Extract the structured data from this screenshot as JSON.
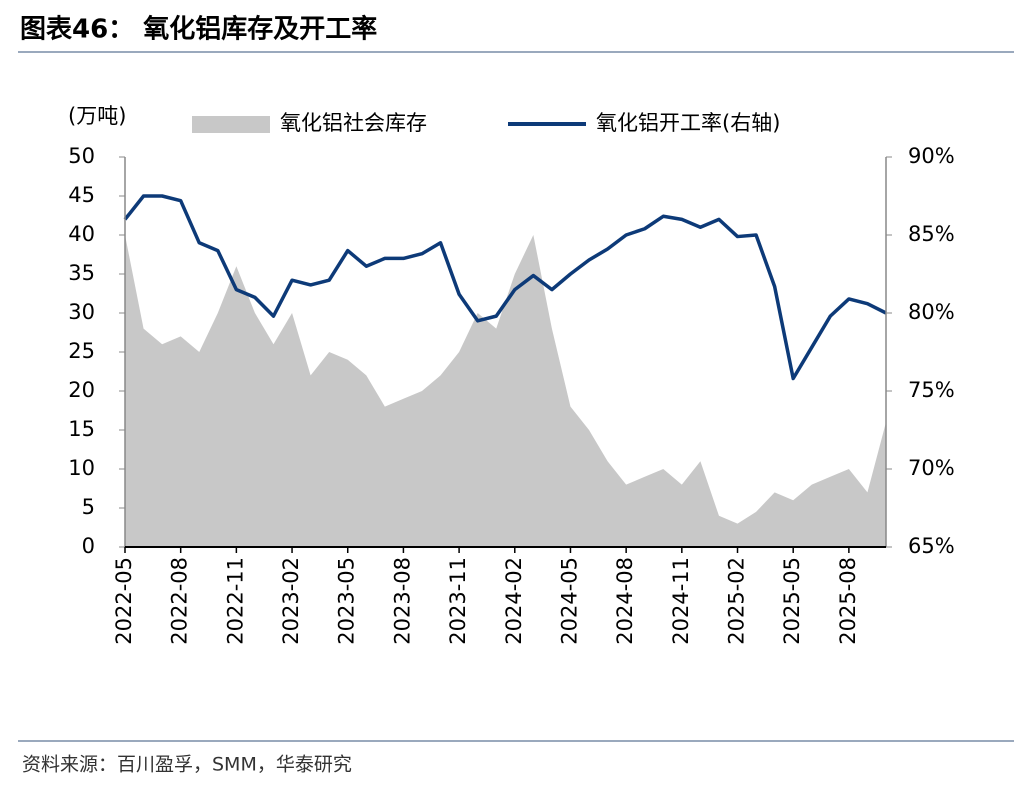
{
  "chart_data": {
    "type": "area-line",
    "title": "图表46：   氧化铝库存及开工率",
    "source": "资料来源：百川盈孚，SMM，华泰研究",
    "y_label": "(万吨)",
    "categories": [
      "2022-05",
      null,
      null,
      "2022-08",
      null,
      null,
      "2022-11",
      null,
      null,
      "2023-02",
      null,
      null,
      "2023-05",
      null,
      null,
      "2023-08",
      null,
      null,
      "2023-11",
      null,
      null,
      "2024-02",
      null,
      null,
      "2024-05",
      null,
      null,
      "2024-08",
      null,
      null,
      "2024-11",
      null,
      null,
      "2025-02",
      null,
      null,
      "2025-05",
      null,
      null,
      "2025-08",
      null,
      null
    ],
    "series": [
      {
        "name": "氧化铝社会库存",
        "color": "#c8c8c8",
        "kind": "area",
        "axis": "y",
        "values": [
          40,
          28,
          26,
          27,
          25,
          30,
          36,
          30,
          26,
          30,
          22,
          25,
          24,
          22,
          18,
          19,
          20,
          22,
          25,
          30,
          28,
          35,
          40,
          28,
          18,
          15,
          11,
          8,
          9,
          10,
          8,
          11,
          4,
          3,
          4.5,
          7,
          6,
          8,
          9,
          10,
          7,
          16
        ]
      },
      {
        "name": "氧化铝开工率(右轴)",
        "color": "#0d3a78",
        "kind": "line",
        "axis": "y2",
        "values": [
          86,
          87.5,
          87.5,
          87.2,
          84.5,
          84,
          81.5,
          81,
          79.8,
          82.1,
          81.8,
          82.1,
          84,
          83,
          83.5,
          83.5,
          83.8,
          84.5,
          81.2,
          79.5,
          79.8,
          81.5,
          82.4,
          81.5,
          82.5,
          83.4,
          84.1,
          85,
          85.4,
          86.2,
          86,
          85.5,
          86,
          84.9,
          85,
          81.7,
          75.8,
          77.8,
          79.8,
          80.9,
          80.6,
          80
        ]
      }
    ],
    "ylim": [
      0,
      50
    ],
    "yticks": [
      0,
      5,
      10,
      15,
      20,
      25,
      30,
      35,
      40,
      45,
      50
    ],
    "y2lim": [
      65,
      90
    ],
    "y2ticks": [
      {
        "value": 65,
        "label": "65%"
      },
      {
        "value": 70,
        "label": "70%"
      },
      {
        "value": 75,
        "label": "75%"
      },
      {
        "value": 80,
        "label": "80%"
      },
      {
        "value": 85,
        "label": "85%"
      },
      {
        "value": 90,
        "label": "90%"
      }
    ]
  }
}
